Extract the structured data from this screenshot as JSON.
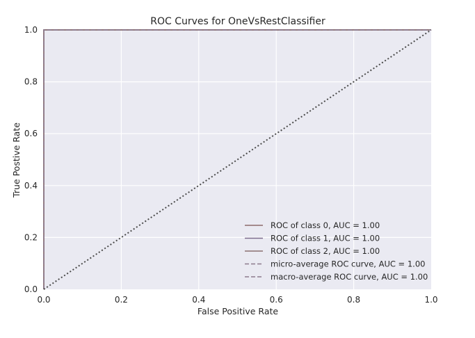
{
  "chart_data": {
    "type": "line",
    "title": "ROC Curves for OneVsRestClassifier",
    "xlabel": "False Positive Rate",
    "ylabel": "True Postive Rate",
    "xlim": [
      0.0,
      1.0
    ],
    "ylim": [
      0.0,
      1.0
    ],
    "xticks": [
      "0.0",
      "0.2",
      "0.4",
      "0.6",
      "0.8",
      "1.0"
    ],
    "yticks": [
      "0.0",
      "0.2",
      "0.4",
      "0.6",
      "0.8",
      "1.0"
    ],
    "grid": true,
    "legend_position": "lower-right",
    "series": [
      {
        "name": "ROC of class 0, AUC = 1.00",
        "style": "solid",
        "color": "#8c6a6a",
        "x": [
          0.0,
          0.0,
          1.0
        ],
        "y": [
          0.0,
          1.0,
          1.0
        ]
      },
      {
        "name": "ROC of class 1, AUC = 1.00",
        "style": "solid",
        "color": "#7a6a8c",
        "x": [
          0.0,
          0.0,
          1.0
        ],
        "y": [
          0.0,
          1.0,
          1.0
        ]
      },
      {
        "name": "ROC of class 2, AUC = 1.00",
        "style": "solid",
        "color": "#8a7070",
        "x": [
          0.0,
          0.0,
          1.0
        ],
        "y": [
          0.0,
          1.0,
          1.0
        ]
      },
      {
        "name": "micro-average ROC curve, AUC = 1.00",
        "style": "dashed",
        "color": "#8c7a8c",
        "x": [
          0.0,
          0.0,
          1.0
        ],
        "y": [
          0.0,
          1.0,
          1.0
        ]
      },
      {
        "name": "macro-average ROC curve, AUC = 1.00",
        "style": "dashed",
        "color": "#8c7a8c",
        "x": [
          0.0,
          0.0,
          1.0
        ],
        "y": [
          0.0,
          1.0,
          1.0
        ]
      }
    ],
    "reference_line": {
      "style": "dotted",
      "color": "#4a4a4a",
      "x": [
        0.0,
        1.0
      ],
      "y": [
        0.0,
        1.0
      ]
    }
  }
}
